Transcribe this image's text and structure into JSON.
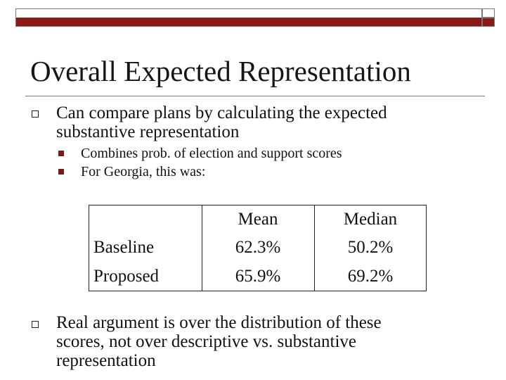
{
  "slide": {
    "title": "Overall Expected Representation",
    "bullets": [
      {
        "lines": [
          "Can compare plans by calculating the expected",
          "substantive representation"
        ],
        "sub": [
          "Combines prob. of election and support scores",
          "For Georgia, this was:"
        ]
      },
      {
        "lines": [
          "Real argument is over the distribution of these",
          "scores, not over descriptive vs. substantive",
          "representation"
        ]
      }
    ],
    "table": {
      "headers": [
        "",
        "Mean",
        "Median"
      ],
      "rows": [
        [
          "Baseline",
          "62.3%",
          "50.2%"
        ],
        [
          "Proposed",
          "65.9%",
          "69.2%"
        ]
      ]
    }
  },
  "colors": {
    "accent": "#8b1a14",
    "text": "#111111"
  }
}
